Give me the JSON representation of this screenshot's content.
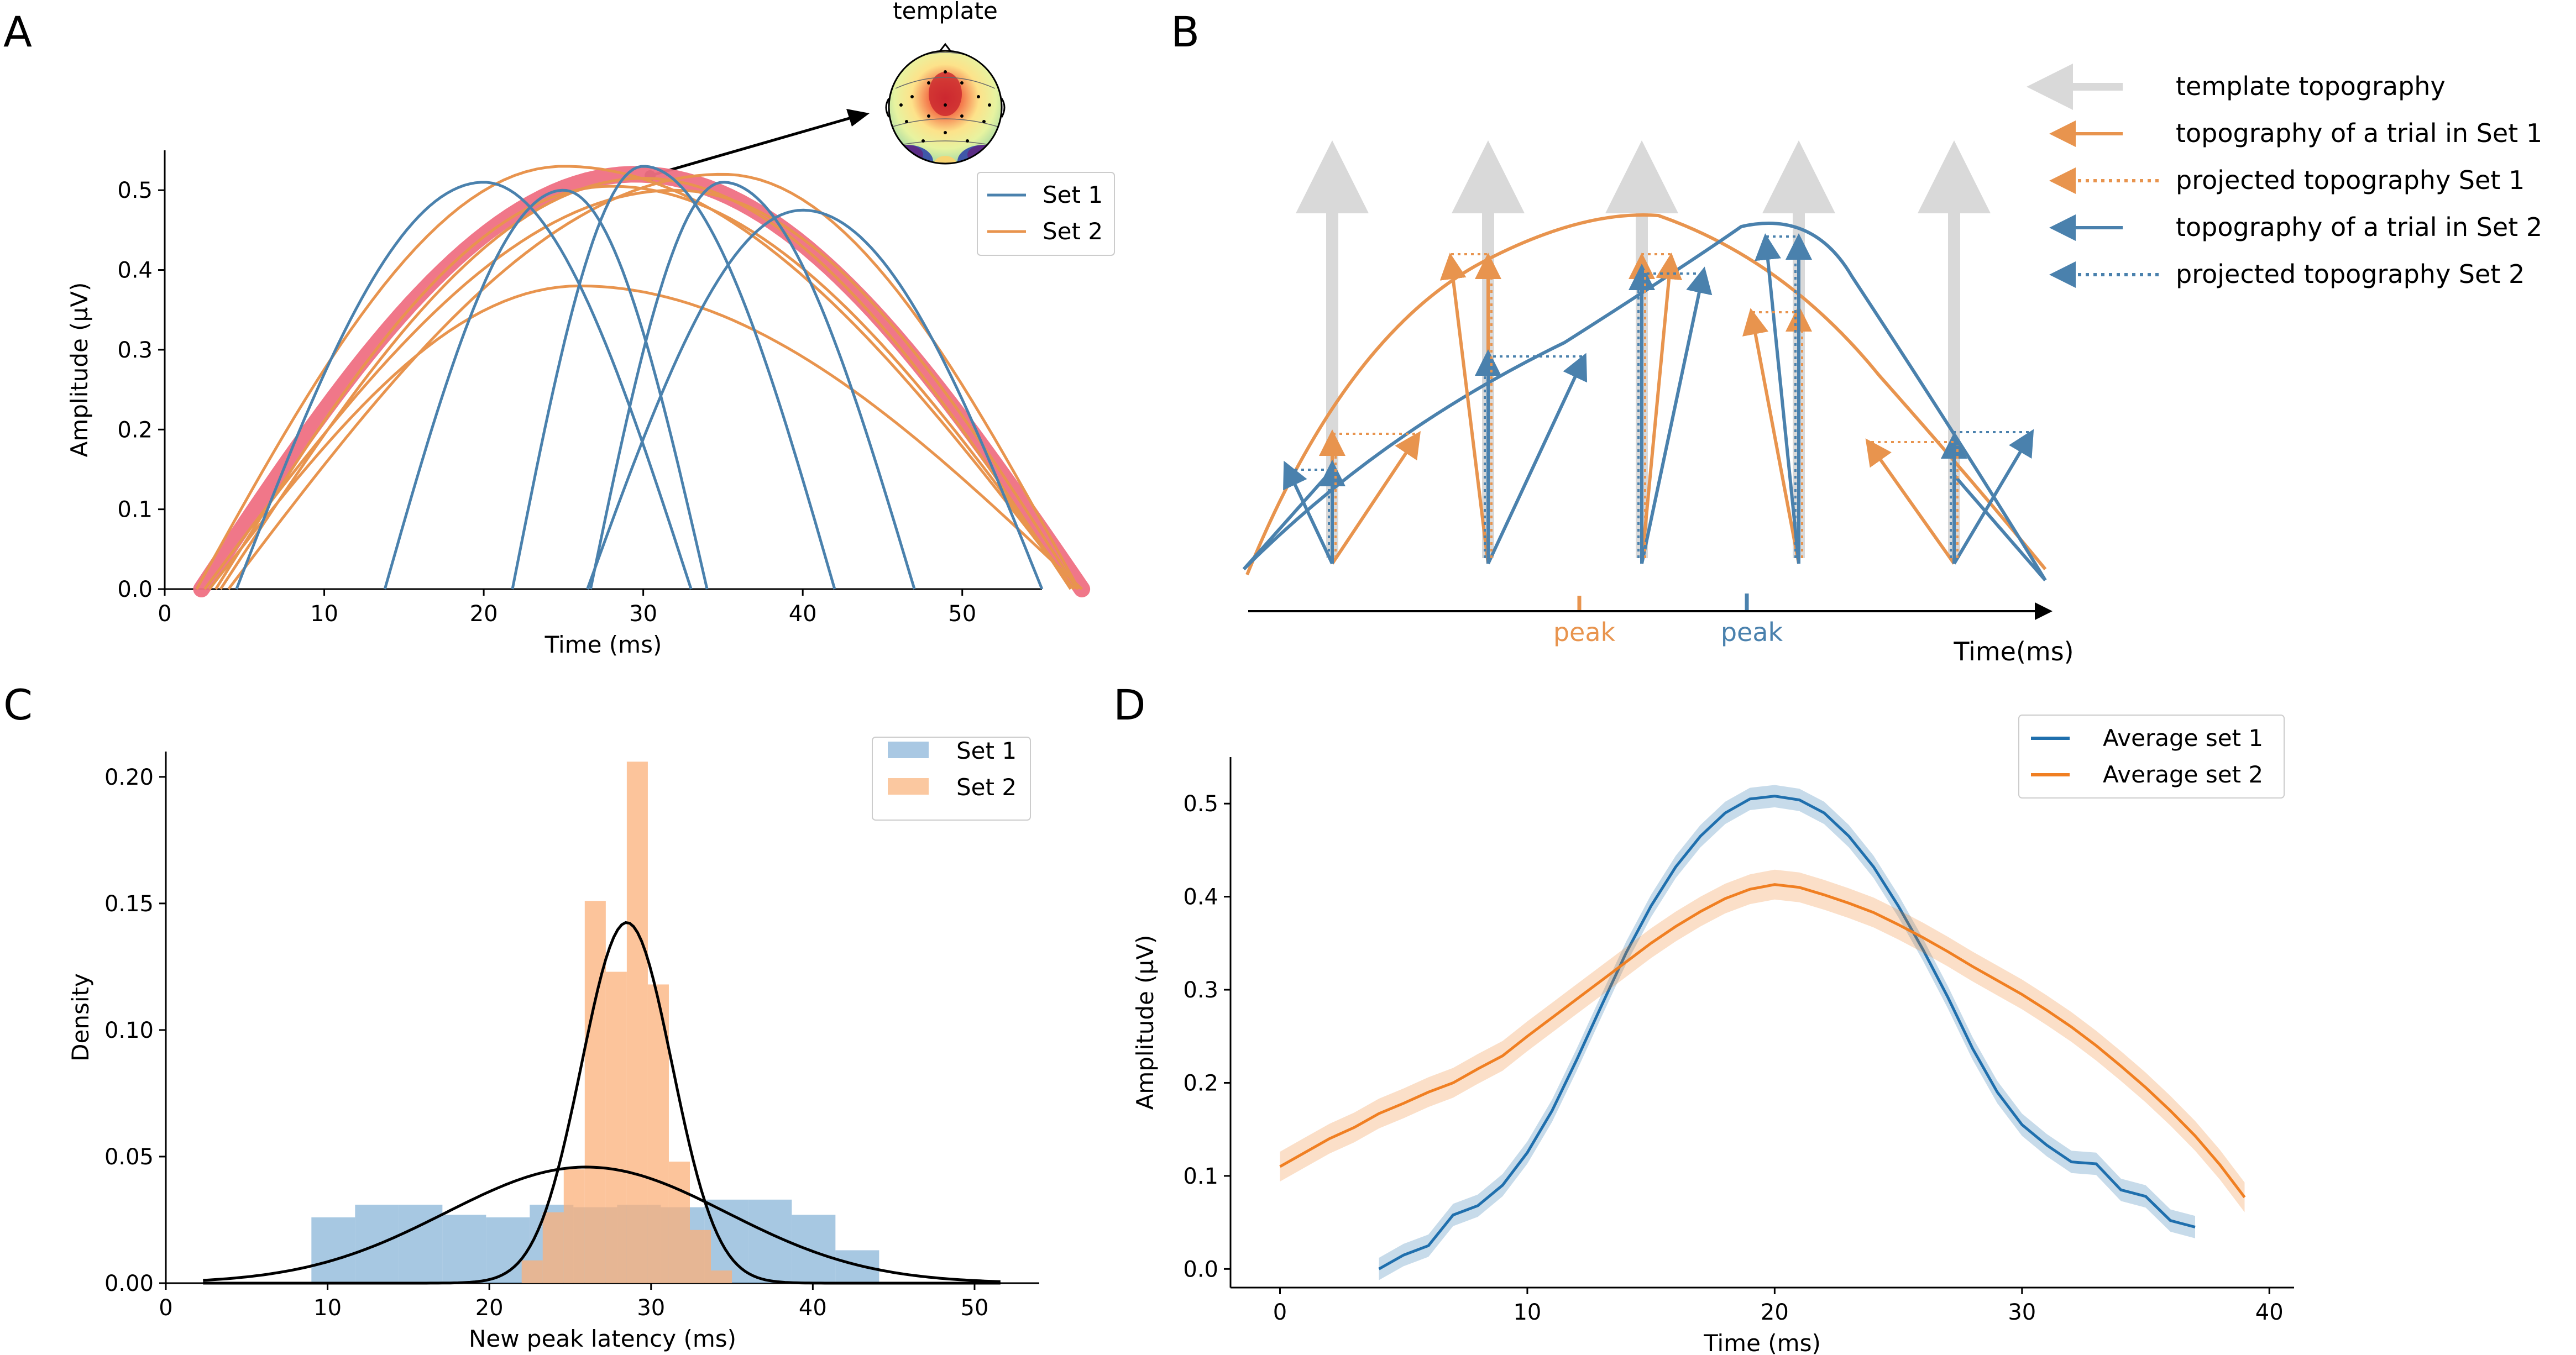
{
  "panel_letters": {
    "a": "A",
    "b": "B",
    "c": "C",
    "d": "D"
  },
  "colors": {
    "set1": "#4a81ad",
    "set2": "#e8944e",
    "template": "#ef7083",
    "hist1": "#a9c8e3",
    "hist2": "#fbc8a0",
    "hist_overlap": "#c0a88c",
    "avg1": "#1f6fad",
    "avg2": "#f07f22",
    "arrow_grey": "#d9d9d9",
    "axis": "#000000"
  },
  "panel_a": {
    "template_label": "template"
  },
  "panel_b": {
    "legend": [
      {
        "label": "template topography",
        "style": "grey-arrow"
      },
      {
        "label": "topography of a trial in Set 1",
        "style": "orange-solid"
      },
      {
        "label": "projected topography Set 1",
        "style": "orange-dotted"
      },
      {
        "label": "topography of a trial in Set 2",
        "style": "blue-solid"
      },
      {
        "label": "projected topography Set 2",
        "style": "blue-dotted"
      }
    ],
    "peak_set1_label": "peak",
    "peak_set2_label": "peak",
    "time_label": "Time(ms)"
  },
  "chart_data": [
    {
      "panel": "A",
      "type": "line",
      "xlabel": "Time (ms)",
      "ylabel": "Amplitude (µV)",
      "xlim": [
        0,
        55
      ],
      "ylim": [
        0,
        0.55
      ],
      "xticks": [
        "0",
        "10",
        "20",
        "30",
        "40",
        "50"
      ],
      "yticks": [
        "0.0",
        "0.1",
        "0.2",
        "0.3",
        "0.4",
        "0.5"
      ],
      "legend": [
        "Set 1",
        "Set 2"
      ],
      "legend_position": "upper-right",
      "template": {
        "start": 2.3,
        "end": 57.5,
        "peak_t": 29.5,
        "amp": 0.52
      },
      "set1_trials": [
        {
          "start": 4.5,
          "end": 33.0,
          "peak_t": 20.0,
          "amp": 0.51
        },
        {
          "start": 13.8,
          "end": 34.0,
          "peak_t": 25.0,
          "amp": 0.5
        },
        {
          "start": 21.8,
          "end": 42.0,
          "peak_t": 30.0,
          "amp": 0.53
        },
        {
          "start": 26.7,
          "end": 47.0,
          "peak_t": 35.0,
          "amp": 0.51
        },
        {
          "start": 26.5,
          "end": 55.0,
          "peak_t": 40.0,
          "amp": 0.475
        }
      ],
      "set2_trials": [
        {
          "start": 2.0,
          "end": 57.0,
          "peak_t": 25.0,
          "amp": 0.53
        },
        {
          "start": 2.5,
          "end": 57.2,
          "peak_t": 32.0,
          "amp": 0.5
        },
        {
          "start": 2.8,
          "end": 57.5,
          "peak_t": 26.0,
          "amp": 0.38
        },
        {
          "start": 3.2,
          "end": 57.0,
          "peak_t": 28.0,
          "amp": 0.505
        },
        {
          "start": 3.5,
          "end": 56.8,
          "peak_t": 30.0,
          "amp": 0.515
        },
        {
          "start": 4.0,
          "end": 57.3,
          "peak_t": 35.0,
          "amp": 0.52
        }
      ]
    },
    {
      "panel": "C",
      "type": "bar",
      "xlabel": "New peak latency (ms)",
      "ylabel": "Density",
      "xlim": [
        0,
        54
      ],
      "ylim": [
        0,
        0.21
      ],
      "xticks": [
        "0",
        "10",
        "20",
        "30",
        "40",
        "50"
      ],
      "yticks": [
        "0.00",
        "0.05",
        "0.10",
        "0.15",
        "0.20"
      ],
      "legend": [
        "Set 1",
        "Set 2"
      ],
      "legend_position": "upper-right",
      "set1_hist": {
        "edges": [
          9,
          11.7,
          14.4,
          17.1,
          19.8,
          22.5,
          25.2,
          27.9,
          30.6,
          33.3,
          36,
          38.7,
          41.4,
          44.1
        ],
        "values": [
          0.026,
          0.031,
          0.031,
          0.027,
          0.026,
          0.031,
          0.03,
          0.031,
          0.03,
          0.033,
          0.033,
          0.027,
          0.013
        ]
      },
      "set2_hist": {
        "edges": [
          22,
          23.3,
          24.6,
          25.9,
          27.2,
          28.5,
          29.8,
          31.1,
          32.4,
          33.7,
          35
        ],
        "values": [
          0.009,
          0.028,
          0.045,
          0.151,
          0.123,
          0.206,
          0.118,
          0.048,
          0.021,
          0.005
        ]
      },
      "set1_fit": {
        "mean": 26.0,
        "sd": 8.7
      },
      "set2_fit": {
        "mean": 28.5,
        "sd": 2.8
      }
    },
    {
      "panel": "D",
      "type": "line",
      "xlabel": "Time (ms)",
      "ylabel": "Amplitude (µV)",
      "xlim": [
        -2,
        41
      ],
      "ylim": [
        -0.02,
        0.55
      ],
      "xticks": [
        "0",
        "10",
        "20",
        "30",
        "40"
      ],
      "yticks": [
        "0.0",
        "0.1",
        "0.2",
        "0.3",
        "0.4",
        "0.5"
      ],
      "legend_position": "upper-right",
      "series": [
        {
          "name": "Average set 1",
          "x": [
            4,
            5,
            6,
            7,
            8,
            9,
            10,
            11,
            12,
            13,
            14,
            15,
            16,
            17,
            18,
            19,
            20,
            21,
            22,
            23,
            24,
            25,
            26,
            27,
            28,
            29,
            30,
            31,
            32,
            33,
            34,
            35,
            36,
            37
          ],
          "y": [
            0.0,
            0.015,
            0.025,
            0.058,
            0.068,
            0.09,
            0.125,
            0.17,
            0.225,
            0.283,
            0.34,
            0.39,
            0.432,
            0.465,
            0.49,
            0.505,
            0.508,
            0.504,
            0.49,
            0.465,
            0.432,
            0.39,
            0.343,
            0.292,
            0.237,
            0.19,
            0.155,
            0.133,
            0.115,
            0.113,
            0.085,
            0.078,
            0.052,
            0.045
          ],
          "band": 0.012
        },
        {
          "name": "Average set 2",
          "x": [
            0,
            1,
            2,
            3,
            4,
            5,
            6,
            7,
            8,
            9,
            10,
            11,
            12,
            13,
            14,
            15,
            16,
            17,
            18,
            19,
            20,
            21,
            22,
            23,
            24,
            25,
            26,
            27,
            28,
            29,
            30,
            31,
            32,
            33,
            34,
            35,
            36,
            37,
            38,
            39
          ],
          "y": [
            0.11,
            0.125,
            0.14,
            0.152,
            0.167,
            0.178,
            0.19,
            0.2,
            0.215,
            0.229,
            0.25,
            0.27,
            0.29,
            0.31,
            0.33,
            0.35,
            0.368,
            0.384,
            0.398,
            0.408,
            0.413,
            0.41,
            0.402,
            0.393,
            0.383,
            0.37,
            0.356,
            0.341,
            0.325,
            0.31,
            0.295,
            0.278,
            0.26,
            0.24,
            0.218,
            0.195,
            0.17,
            0.143,
            0.112,
            0.077
          ],
          "band": 0.016
        }
      ]
    }
  ]
}
